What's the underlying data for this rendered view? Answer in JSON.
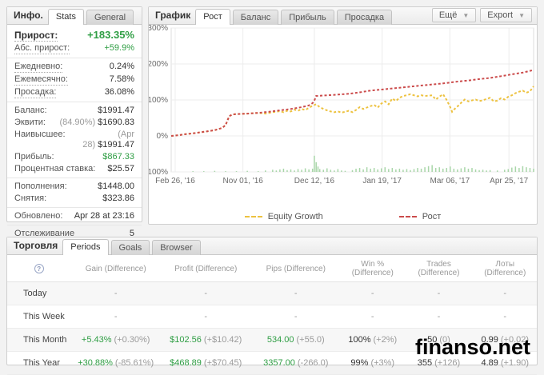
{
  "info_panel": {
    "title": "Инфо.",
    "tabs": [
      "Stats",
      "General"
    ],
    "rows": {
      "gain": {
        "label": "Прирост:",
        "value": "+183.35%"
      },
      "abs_gain": {
        "label": "Абс. прирост:",
        "value": "+59.9%"
      },
      "daily": {
        "label": "Ежедневно:",
        "value": "0.24%"
      },
      "monthly": {
        "label": "Ежемесячно:",
        "value": "7.58%"
      },
      "drawdown": {
        "label": "Просадка:",
        "value": "36.08%"
      },
      "balance": {
        "label": "Баланс:",
        "value": "$1991.47"
      },
      "equity": {
        "label": "Эквити:",
        "prefix": "(84.90%)",
        "value": "$1690.83"
      },
      "highest": {
        "label": "Наивысшее:",
        "prefix": "(Apr 28)",
        "value": "$1991.47"
      },
      "profit": {
        "label": "Прибыль:",
        "value": "$867.33"
      },
      "interest": {
        "label": "Процентная ставка:",
        "value": "$25.57"
      },
      "deposits": {
        "label": "Пополнения:",
        "value": "$1448.00"
      },
      "withdrawals": {
        "label": "Снятия:",
        "value": "$323.86"
      },
      "updated": {
        "label": "Обновлено:",
        "value": "Apr 28 at 23:16"
      },
      "tracking": {
        "label": "Отслеживание",
        "value": "5"
      }
    }
  },
  "chart_panel": {
    "title": "График",
    "tabs": [
      "Рост",
      "Баланс",
      "Прибыль",
      "Просадка"
    ],
    "active_tab": "Рост",
    "more_button": "Ещё",
    "export_button": "Export"
  },
  "chart_data": {
    "type": "line",
    "title": "",
    "xlabel": "",
    "ylabel": "",
    "ylim": [
      -100,
      300
    ],
    "grid": true,
    "legend_position": "bottom",
    "y_ticks": [
      {
        "label": "300%",
        "v": 300
      },
      {
        "label": "200%",
        "v": 200
      },
      {
        "label": "100%",
        "v": 100
      },
      {
        "label": "0%",
        "v": 0
      },
      {
        "label": "-100%",
        "v": -100
      }
    ],
    "x_ticks": [
      {
        "label": "Feb 26, '16",
        "f": 0.011
      },
      {
        "label": "Nov 01, '16",
        "f": 0.198
      },
      {
        "label": "Dec 12, '16",
        "f": 0.395
      },
      {
        "label": "Jan 19, '17",
        "f": 0.582
      },
      {
        "label": "Mar 06, '17",
        "f": 0.769
      },
      {
        "label": "Apr 25, '17",
        "f": 0.932
      }
    ],
    "series": [
      {
        "name": "Equity Growth",
        "color": "#edc240",
        "points": [
          [
            0,
            0
          ],
          [
            0.02,
            2
          ],
          [
            0.04,
            5
          ],
          [
            0.06,
            7
          ],
          [
            0.08,
            10
          ],
          [
            0.1,
            13
          ],
          [
            0.12,
            16
          ],
          [
            0.14,
            22
          ],
          [
            0.15,
            30
          ],
          [
            0.16,
            55
          ],
          [
            0.17,
            60
          ],
          [
            0.19,
            61
          ],
          [
            0.21,
            62
          ],
          [
            0.24,
            64
          ],
          [
            0.26,
            62
          ],
          [
            0.28,
            66
          ],
          [
            0.3,
            69
          ],
          [
            0.31,
            66
          ],
          [
            0.32,
            70
          ],
          [
            0.33,
            68
          ],
          [
            0.34,
            73
          ],
          [
            0.35,
            70
          ],
          [
            0.36,
            75
          ],
          [
            0.37,
            72
          ],
          [
            0.38,
            78
          ],
          [
            0.39,
            84
          ],
          [
            0.4,
            88
          ],
          [
            0.41,
            80
          ],
          [
            0.42,
            75
          ],
          [
            0.43,
            71
          ],
          [
            0.44,
            68
          ],
          [
            0.45,
            66
          ],
          [
            0.46,
            68
          ],
          [
            0.47,
            65
          ],
          [
            0.48,
            67
          ],
          [
            0.49,
            70
          ],
          [
            0.5,
            66
          ],
          [
            0.51,
            72
          ],
          [
            0.52,
            80
          ],
          [
            0.53,
            75
          ],
          [
            0.54,
            79
          ],
          [
            0.55,
            83
          ],
          [
            0.56,
            86
          ],
          [
            0.57,
            79
          ],
          [
            0.58,
            90
          ],
          [
            0.59,
            96
          ],
          [
            0.6,
            88
          ],
          [
            0.61,
            104
          ],
          [
            0.62,
            97
          ],
          [
            0.63,
            106
          ],
          [
            0.64,
            111
          ],
          [
            0.65,
            113
          ],
          [
            0.66,
            116
          ],
          [
            0.67,
            113
          ],
          [
            0.68,
            110
          ],
          [
            0.69,
            113
          ],
          [
            0.7,
            111
          ],
          [
            0.71,
            112
          ],
          [
            0.72,
            113
          ],
          [
            0.73,
            101
          ],
          [
            0.74,
            109
          ],
          [
            0.75,
            116
          ],
          [
            0.76,
            100
          ],
          [
            0.77,
            80
          ],
          [
            0.775,
            67
          ],
          [
            0.78,
            73
          ],
          [
            0.79,
            82
          ],
          [
            0.8,
            92
          ],
          [
            0.81,
            101
          ],
          [
            0.82,
            96
          ],
          [
            0.83,
            99
          ],
          [
            0.84,
            101
          ],
          [
            0.85,
            97
          ],
          [
            0.86,
            99
          ],
          [
            0.87,
            103
          ],
          [
            0.88,
            106
          ],
          [
            0.89,
            96
          ],
          [
            0.9,
            98
          ],
          [
            0.91,
            105
          ],
          [
            0.92,
            101
          ],
          [
            0.93,
            109
          ],
          [
            0.94,
            113
          ],
          [
            0.95,
            119
          ],
          [
            0.96,
            123
          ],
          [
            0.97,
            126
          ],
          [
            0.98,
            120
          ],
          [
            0.99,
            124
          ],
          [
            1,
            138
          ]
        ]
      },
      {
        "name": "Рост",
        "color": "#cb4b4b",
        "points": [
          [
            0,
            0
          ],
          [
            0.02,
            2
          ],
          [
            0.04,
            5
          ],
          [
            0.06,
            7
          ],
          [
            0.08,
            10
          ],
          [
            0.1,
            13
          ],
          [
            0.12,
            16
          ],
          [
            0.14,
            22
          ],
          [
            0.15,
            30
          ],
          [
            0.16,
            55
          ],
          [
            0.17,
            60
          ],
          [
            0.19,
            61
          ],
          [
            0.21,
            62
          ],
          [
            0.24,
            64
          ],
          [
            0.27,
            67
          ],
          [
            0.3,
            71
          ],
          [
            0.33,
            75
          ],
          [
            0.36,
            80
          ],
          [
            0.38,
            85
          ],
          [
            0.39,
            91
          ],
          [
            0.395,
            98
          ],
          [
            0.4,
            111
          ],
          [
            0.43,
            113
          ],
          [
            0.46,
            115
          ],
          [
            0.49,
            117
          ],
          [
            0.52,
            121
          ],
          [
            0.55,
            126
          ],
          [
            0.58,
            129
          ],
          [
            0.61,
            132
          ],
          [
            0.64,
            135
          ],
          [
            0.67,
            138
          ],
          [
            0.7,
            141
          ],
          [
            0.73,
            144
          ],
          [
            0.76,
            147
          ],
          [
            0.79,
            151
          ],
          [
            0.82,
            154
          ],
          [
            0.85,
            158
          ],
          [
            0.88,
            161
          ],
          [
            0.91,
            166
          ],
          [
            0.94,
            171
          ],
          [
            0.97,
            176
          ],
          [
            1,
            183
          ]
        ]
      }
    ],
    "bars": {
      "name": "volume",
      "color": "#a9d6a9",
      "points": [
        [
          0.06,
          2
        ],
        [
          0.09,
          2
        ],
        [
          0.12,
          3
        ],
        [
          0.15,
          2
        ],
        [
          0.18,
          2
        ],
        [
          0.21,
          3
        ],
        [
          0.24,
          2
        ],
        [
          0.26,
          4
        ],
        [
          0.28,
          6
        ],
        [
          0.29,
          4
        ],
        [
          0.3,
          7
        ],
        [
          0.31,
          9
        ],
        [
          0.32,
          5
        ],
        [
          0.33,
          7
        ],
        [
          0.34,
          4
        ],
        [
          0.35,
          8
        ],
        [
          0.36,
          6
        ],
        [
          0.37,
          10
        ],
        [
          0.38,
          7
        ],
        [
          0.39,
          9
        ],
        [
          0.395,
          45
        ],
        [
          0.4,
          27
        ],
        [
          0.405,
          15
        ],
        [
          0.41,
          8
        ],
        [
          0.42,
          6
        ],
        [
          0.43,
          10
        ],
        [
          0.44,
          6
        ],
        [
          0.45,
          4
        ],
        [
          0.46,
          8
        ],
        [
          0.47,
          4
        ],
        [
          0.48,
          3
        ],
        [
          0.5,
          5
        ],
        [
          0.51,
          9
        ],
        [
          0.52,
          11
        ],
        [
          0.53,
          7
        ],
        [
          0.54,
          13
        ],
        [
          0.55,
          9
        ],
        [
          0.56,
          11
        ],
        [
          0.57,
          7
        ],
        [
          0.58,
          10
        ],
        [
          0.59,
          13
        ],
        [
          0.6,
          8
        ],
        [
          0.61,
          11
        ],
        [
          0.62,
          7
        ],
        [
          0.63,
          9
        ],
        [
          0.64,
          6
        ],
        [
          0.65,
          8
        ],
        [
          0.66,
          5
        ],
        [
          0.67,
          8
        ],
        [
          0.68,
          11
        ],
        [
          0.69,
          9
        ],
        [
          0.7,
          13
        ],
        [
          0.71,
          16
        ],
        [
          0.72,
          19
        ],
        [
          0.73,
          11
        ],
        [
          0.74,
          13
        ],
        [
          0.75,
          9
        ],
        [
          0.76,
          11
        ],
        [
          0.77,
          15
        ],
        [
          0.78,
          9
        ],
        [
          0.79,
          7
        ],
        [
          0.8,
          10
        ],
        [
          0.81,
          13
        ],
        [
          0.82,
          9
        ],
        [
          0.83,
          11
        ],
        [
          0.84,
          7
        ],
        [
          0.85,
          5
        ],
        [
          0.86,
          6
        ],
        [
          0.87,
          4
        ],
        [
          0.88,
          5
        ],
        [
          0.9,
          4
        ],
        [
          0.92,
          6
        ],
        [
          0.93,
          8
        ],
        [
          0.94,
          12
        ],
        [
          0.95,
          15
        ],
        [
          0.96,
          11
        ],
        [
          0.97,
          16
        ],
        [
          0.98,
          13
        ],
        [
          0.99,
          11
        ],
        [
          1,
          9
        ]
      ]
    }
  },
  "trade_panel": {
    "title": "Торговля",
    "tabs": [
      "Periods",
      "Goals",
      "Browser"
    ],
    "active_tab": "Periods",
    "help_icon": "?",
    "table": {
      "columns": [
        "Gain (Difference)",
        "Profit (Difference)",
        "Pips (Difference)",
        "Win % (Difference)",
        "Trades (Difference)",
        "Лоты (Difference)"
      ],
      "rows": [
        {
          "label": "Today",
          "cells": [
            [
              "-",
              ""
            ],
            [
              "-",
              ""
            ],
            [
              "-",
              ""
            ],
            [
              "-",
              ""
            ],
            [
              "-",
              ""
            ],
            [
              "-",
              ""
            ]
          ]
        },
        {
          "label": "This Week",
          "cells": [
            [
              "-",
              ""
            ],
            [
              "-",
              ""
            ],
            [
              "-",
              ""
            ],
            [
              "-",
              ""
            ],
            [
              "-",
              ""
            ],
            [
              "-",
              ""
            ]
          ]
        },
        {
          "label": "This Month",
          "cells": [
            [
              "+5.43%",
              "(+0.30%)"
            ],
            [
              "$102.56",
              "(+$10.42)"
            ],
            [
              "534.00",
              "(+55.0)"
            ],
            [
              "100%",
              "(+2%)"
            ],
            [
              "50",
              "(0)"
            ],
            [
              "0.99",
              "(+0.02)"
            ]
          ]
        },
        {
          "label": "This Year",
          "cells": [
            [
              "+30.88%",
              "(-85.61%)"
            ],
            [
              "$468.89",
              "(+$70.45)"
            ],
            [
              "3357.00",
              "(-266.0)"
            ],
            [
              "99%",
              "(+3%)"
            ],
            [
              "355",
              "(+126)"
            ],
            [
              "4.89",
              "(+1.90)"
            ]
          ]
        }
      ]
    }
  },
  "watermark": "finanso.net",
  "colors": {
    "accent_green": "#2f9e44",
    "line_red": "#cb4b4b",
    "line_yellow": "#edc240",
    "bar_green": "#a9d6a9"
  }
}
